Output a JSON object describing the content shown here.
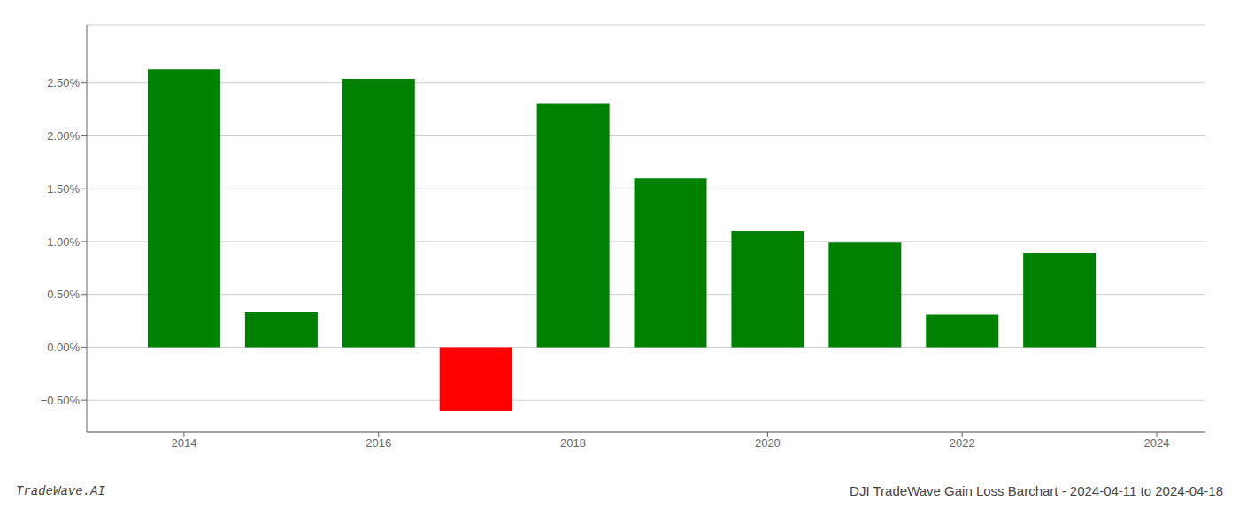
{
  "chart_data": {
    "type": "bar",
    "title": "DJI TradeWave Gain Loss Barchart - 2024-04-11 to 2024-04-18",
    "annotations": [
      "TradeWave.AI"
    ],
    "x": [
      2014,
      2015,
      2016,
      2017,
      2018,
      2019,
      2020,
      2021,
      2022,
      2023
    ],
    "values": [
      2.63,
      0.33,
      2.54,
      -0.6,
      2.31,
      1.6,
      1.1,
      0.99,
      0.31,
      0.89
    ],
    "colors": [
      "#008000",
      "#008000",
      "#008000",
      "#ff0000",
      "#008000",
      "#008000",
      "#008000",
      "#008000",
      "#008000",
      "#008000"
    ],
    "xlim": [
      2013.0,
      2024.5
    ],
    "xticks": [
      2014,
      2016,
      2018,
      2020,
      2022,
      2024
    ],
    "ylim": [
      -0.8,
      3.05
    ],
    "yticks": [
      {
        "value": -0.5,
        "label": "−0.50%"
      },
      {
        "value": 0.0,
        "label": "0.00%"
      },
      {
        "value": 0.5,
        "label": "0.50%"
      },
      {
        "value": 1.0,
        "label": "1.00%"
      },
      {
        "value": 1.5,
        "label": "1.50%"
      },
      {
        "value": 2.0,
        "label": "2.00%"
      },
      {
        "value": 2.5,
        "label": "2.50%"
      }
    ],
    "grid": "y"
  }
}
